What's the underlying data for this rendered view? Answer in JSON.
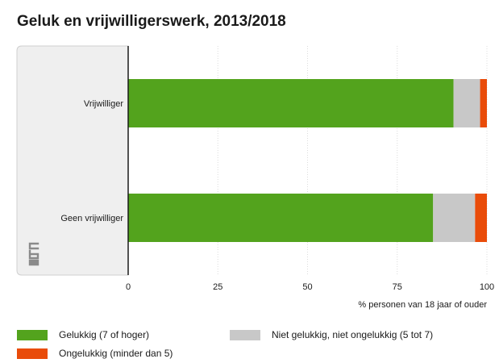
{
  "chart_data": {
    "type": "bar",
    "orientation": "horizontal",
    "stacked": true,
    "title": "Geluk en vrijwilligerswerk, 2013/2018",
    "categories": [
      "Vrijwilliger",
      "Geen vrijwilliger"
    ],
    "series": [
      {
        "name": "Gelukkig (7 of hoger)",
        "color": "#53a31d",
        "values": [
          90.7,
          85.0
        ]
      },
      {
        "name": "Niet gelukkig, niet ongelukkig (5 tot 7)",
        "color": "#c8c8c8",
        "values": [
          7.4,
          11.7
        ]
      },
      {
        "name": "Ongelukkig (minder dan 5)",
        "color": "#e94c0a",
        "values": [
          1.9,
          3.3
        ]
      }
    ],
    "xlim": [
      0,
      100
    ],
    "xticks": [
      0,
      25,
      50,
      75,
      100
    ],
    "xlabel": "% personen van 18 jaar of ouder",
    "grid": true
  },
  "legend_order": [
    0,
    1,
    2
  ],
  "colors": {
    "panel": "#efefef",
    "panel_edge": "#cfcfcf",
    "grid": "#dcdcdc",
    "axis": "#1a1a1a"
  }
}
